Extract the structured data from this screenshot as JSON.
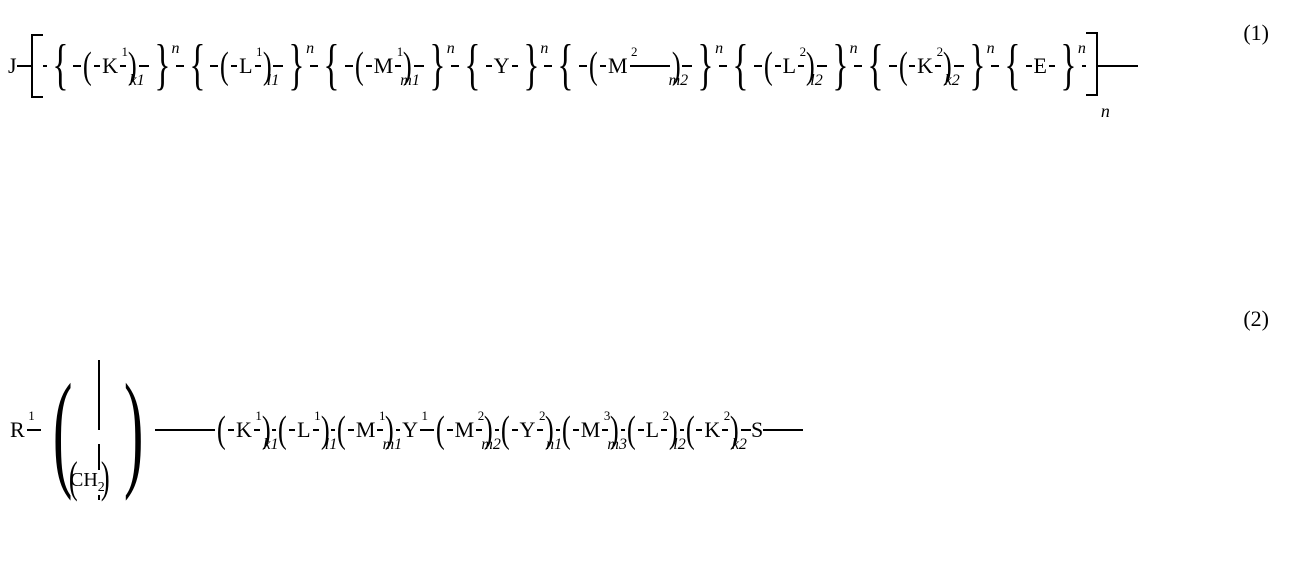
{
  "eq1": {
    "number": "(1)",
    "leading": "J",
    "outerSubscript": "n",
    "blocks": [
      {
        "type": "brace+paren",
        "base": "K",
        "baseSup": "1",
        "parenSub": "k1",
        "braceSup": "n"
      },
      {
        "type": "brace+paren",
        "base": "L",
        "baseSup": "1",
        "parenSub": "l1",
        "braceSup": "n"
      },
      {
        "type": "brace+paren",
        "base": "M",
        "baseSup": "1",
        "parenSub": "m1",
        "braceSup": "n"
      },
      {
        "type": "brace",
        "base": "Y",
        "braceSup": "n"
      },
      {
        "type": "brace+paren",
        "base": "M",
        "baseSup": "2",
        "parenSub": "m2",
        "braceSup": "n",
        "connAfterBase": true
      },
      {
        "type": "brace+paren",
        "base": "L",
        "baseSup": "2",
        "parenSub": "l2",
        "braceSup": "n"
      },
      {
        "type": "brace+paren",
        "base": "K",
        "baseSup": "2",
        "parenSub": "k2",
        "braceSup": "n"
      },
      {
        "type": "brace",
        "base": "E",
        "braceSup": "n"
      }
    ]
  },
  "eq2": {
    "number": "(2)",
    "leading": "R",
    "leadingSup": "1",
    "trailing": "S",
    "branchLabel": "CH",
    "branchSub": "2",
    "terms": [
      {
        "base": "K",
        "baseSup": "1",
        "sub": "k1"
      },
      {
        "base": "L",
        "baseSup": "1",
        "sub": "l1"
      },
      {
        "base": "M",
        "baseSup": "1",
        "sub": "m1"
      },
      {
        "plain": "Y",
        "plainSup": "1"
      },
      {
        "base": "M",
        "baseSup": "2",
        "sub": "m2"
      },
      {
        "base": "Y",
        "baseSup": "2",
        "sub": "n1"
      },
      {
        "base": "M",
        "baseSup": "3",
        "sub": "m3"
      },
      {
        "base": "L",
        "baseSup": "2",
        "sub": "l2"
      },
      {
        "base": "K",
        "baseSup": "2",
        "sub": "k2"
      }
    ]
  },
  "style": {
    "connShort": 14,
    "connMed": 26,
    "connLong": 40,
    "color": "#000000",
    "bg": "#ffffff",
    "baseFont": 22
  }
}
